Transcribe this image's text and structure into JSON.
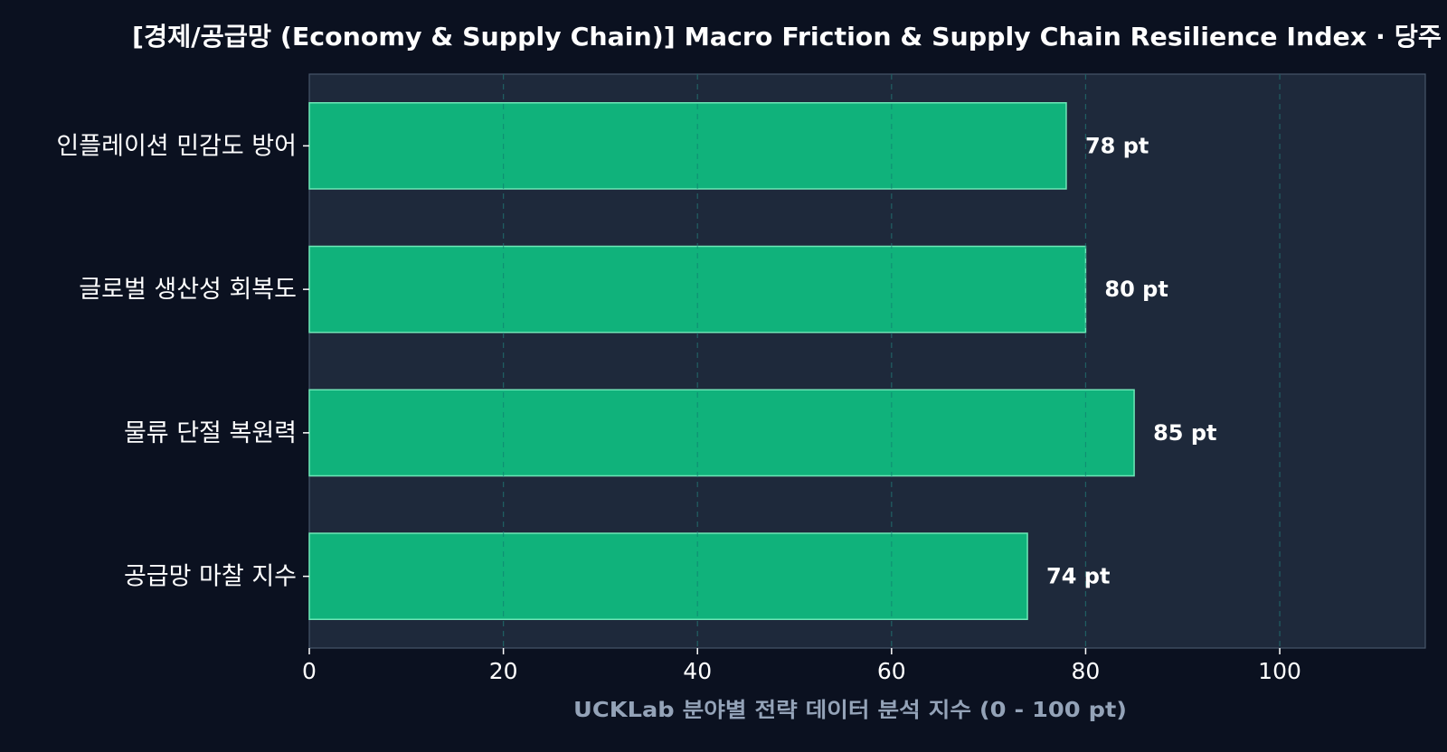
{
  "colors": {
    "page_bg": "#0b1120",
    "plot_bg": "#1e293b",
    "bar_fill": "#10b27b",
    "bar_edge": "#6ee7b7",
    "grid": "#334155",
    "grid_on_bar": "#0f766e",
    "text": "#ffffff",
    "axis_label": "#94a3b8",
    "axis_line": "#475569"
  },
  "chart_data": {
    "type": "bar",
    "orientation": "horizontal",
    "title": "[경제/공급망 (Economy & Supply Chain)] Macro Friction & Supply Chain Resilience Index · 당주",
    "xlabel": "UCKLab 분야별 전략 데이터 분석 지수 (0 - 100 pt)",
    "ylabel": "",
    "categories": [
      "인플레이션 민감도 방어",
      "글로벌 생산성 회복도",
      "물류 단절 복원력",
      "공급망 마찰 지수"
    ],
    "values": [
      78,
      80,
      85,
      74
    ],
    "value_labels": [
      "78 pt",
      "80 pt",
      "85 pt",
      "74 pt"
    ],
    "xlim": [
      0,
      115
    ],
    "xticks": [
      0,
      20,
      40,
      60,
      80,
      100
    ],
    "xtick_labels": [
      "0",
      "20",
      "40",
      "60",
      "80",
      "100"
    ],
    "grid": "x-dashed",
    "legend": "none"
  }
}
